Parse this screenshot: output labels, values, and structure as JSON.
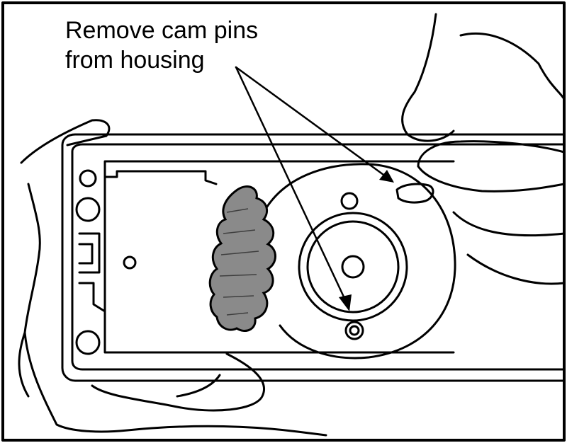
{
  "callout": {
    "line1": "Remove cam pins",
    "line2": "from housing"
  },
  "colors": {
    "ink": "#000000",
    "paper": "#ffffff",
    "gasket": "#8a8a8a"
  }
}
